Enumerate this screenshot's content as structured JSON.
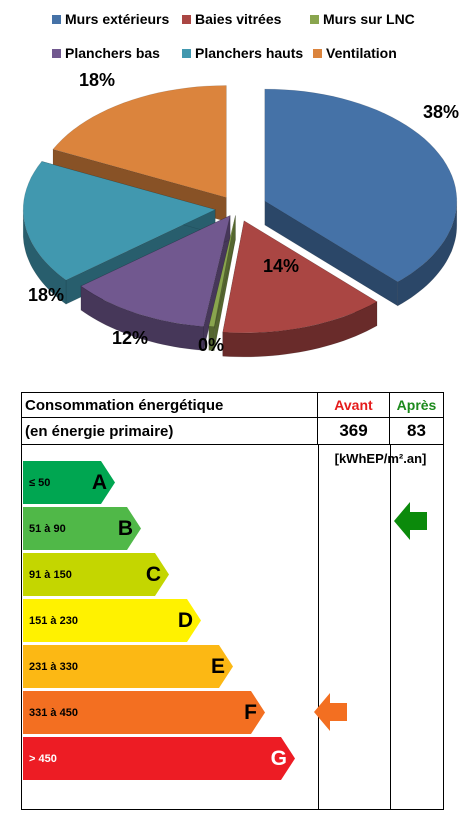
{
  "chart_data": {
    "type": "pie",
    "categories": [
      "Murs extérieurs",
      "Baies vitrées",
      "Murs sur LNC",
      "Planchers bas",
      "Planchers hauts",
      "Ventilation"
    ],
    "values": [
      38,
      14,
      0,
      12,
      18,
      18
    ],
    "value_labels": [
      "38%",
      "14%",
      "0%",
      "12%",
      "18%",
      "18%"
    ],
    "colors": [
      "#4572a7",
      "#aa4643",
      "#89a54e",
      "#71588f",
      "#4198af",
      "#db843d"
    ],
    "legend_position": "top",
    "exploded": true,
    "three_d": true
  },
  "table": {
    "header_label": "Consommation énergétique",
    "sub_label": "(en énergie primaire)",
    "before_label": "Avant",
    "after_label": "Après",
    "before_value": "369",
    "after_value": "83",
    "unit": "[kWhEP/m².an]",
    "before_color": "#e51b1b",
    "after_color": "#1c8a1c"
  },
  "classes": [
    {
      "letter": "A",
      "range": "≤ 50",
      "color": "#00a651"
    },
    {
      "letter": "B",
      "range": "51 à 90",
      "color": "#50b848"
    },
    {
      "letter": "C",
      "range": "91 à 150",
      "color": "#c4d600"
    },
    {
      "letter": "D",
      "range": "151 à 230",
      "color": "#fff200"
    },
    {
      "letter": "E",
      "range": "231 à 330",
      "color": "#fcb814"
    },
    {
      "letter": "F",
      "range": "331 à 450",
      "color": "#f36f21"
    },
    {
      "letter": "G",
      "range": "> 450",
      "color": "#ed1c24"
    }
  ],
  "before_class": "F",
  "after_class": "B",
  "arrow_colors": {
    "before": "#f36f21",
    "after": "#0b8a0b"
  }
}
